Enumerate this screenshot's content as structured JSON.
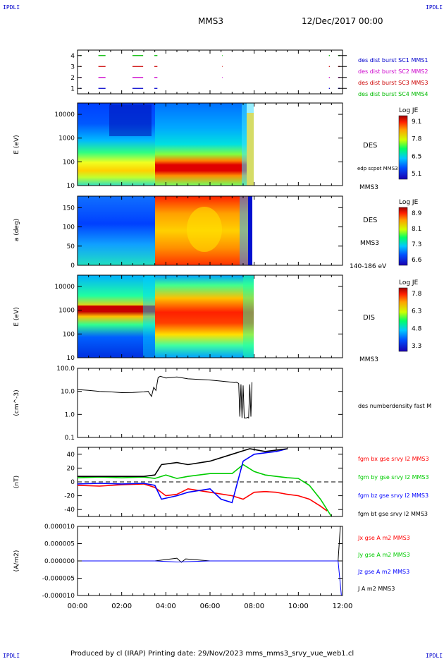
{
  "header": {
    "corner_tl": "IPDLI",
    "corner_tr": "IPDLI",
    "corner_bl": "IPDLI",
    "corner_br": "IPDLI",
    "mission": "MMS3",
    "date": "12/Dec/2017 00:00",
    "footer": "Produced by cl (IRAP)   Printing date: 29/Nov/2023   mms_mms3_srvy_vue_web1.cl"
  },
  "colors": {
    "mms1": "#0000cc",
    "mms2": "#cc00cc",
    "mms3": "#cc0000",
    "mms4": "#00bb00",
    "black": "#000000",
    "red": "#ff0000",
    "green": "#00cc00",
    "blue": "#0000ff"
  },
  "chart_data": [
    {
      "type": "scatter",
      "panel": "burst",
      "ylim": [
        0.5,
        4.5
      ],
      "y_ticks": [
        "1",
        "2",
        "3",
        "4"
      ],
      "x_ticks": [
        "00:00",
        "02:00",
        "04:00",
        "06:00",
        "08:00",
        "10:00",
        "12:00"
      ],
      "legend": [
        {
          "label": "des dist burst SC1 MMS1",
          "color_key": "mms1",
          "y": 4
        },
        {
          "label": "des dist burst SC2 MMS2",
          "color_key": "mms2",
          "y": 3
        },
        {
          "label": "des dist burst SC3 MMS3",
          "color_key": "mms3",
          "y": 2
        },
        {
          "label": "des dist burst SC4 MMS4",
          "color_key": "mms4",
          "y": 1
        }
      ],
      "series": [
        {
          "name": "des dist burst SC4 MMS4",
          "y": 4,
          "color_key": "mms4",
          "segments": [
            [
              0.25,
              0.35
            ],
            [
              2.05,
              2.75
            ],
            [
              5.4,
              6.45
            ],
            [
              7.55,
              7.85
            ],
            [
              14.2,
              14.25
            ],
            [
              24.7,
              24.8
            ],
            [
              25.6,
              25.8
            ]
          ]
        },
        {
          "name": "des dist burst SC3 MMS3",
          "y": 3,
          "color_key": "mms3",
          "segments": [
            [
              0.25,
              0.35
            ],
            [
              2.05,
              2.75
            ],
            [
              5.4,
              6.45
            ],
            [
              7.55,
              7.85
            ],
            [
              14.2,
              14.25
            ],
            [
              24.7,
              24.8
            ],
            [
              25.6,
              25.8
            ]
          ]
        },
        {
          "name": "des dist burst SC2 MMS2",
          "y": 2,
          "color_key": "mms2",
          "segments": [
            [
              0.25,
              0.35
            ],
            [
              2.05,
              2.75
            ],
            [
              5.4,
              6.45
            ],
            [
              7.55,
              7.85
            ],
            [
              14.2,
              14.25
            ],
            [
              24.7,
              24.8
            ],
            [
              25.6,
              25.8
            ]
          ]
        },
        {
          "name": "des dist burst SC1 MMS1",
          "y": 1,
          "color_key": "mms1",
          "segments": [
            [
              0.25,
              0.35
            ],
            [
              2.05,
              2.75
            ],
            [
              5.4,
              6.45
            ],
            [
              7.55,
              7.85
            ],
            [
              24.7,
              24.8
            ],
            [
              25.6,
              25.8
            ]
          ]
        }
      ]
    },
    {
      "type": "heatmap",
      "panel": "des_energy",
      "ylabel": "E (eV)",
      "scale": "log",
      "ylim": [
        10,
        30000
      ],
      "y_ticks": [
        "10",
        "100",
        "1000",
        "10000"
      ],
      "x_ticks": [
        "00:00",
        "02:00",
        "04:00",
        "06:00",
        "08:00",
        "10:00",
        "12:00"
      ],
      "label": "DES",
      "sublabel": "edp scpot MMS3",
      "bottom_label": "MMS3",
      "colorbar": {
        "title": "Log JE",
        "ticks": [
          "9.1",
          "7.8",
          "6.5",
          "5.1"
        ]
      },
      "data_end_hours": 8.0
    },
    {
      "type": "heatmap",
      "panel": "des_pitch",
      "ylabel": "a (deg)",
      "ylim": [
        0,
        180
      ],
      "y_ticks": [
        "0",
        "50",
        "100",
        "150"
      ],
      "x_ticks": [
        "00:00",
        "02:00",
        "04:00",
        "06:00",
        "08:00",
        "10:00",
        "12:00"
      ],
      "label": "DES",
      "sublabel": "MMS3",
      "bottom_label": "140-186 eV",
      "colorbar": {
        "title": "Log JE",
        "ticks": [
          "8.9",
          "8.1",
          "7.3",
          "6.6"
        ]
      },
      "data_end_hours": 8.0
    },
    {
      "type": "heatmap",
      "panel": "dis_energy",
      "ylabel": "E (eV)",
      "scale": "log",
      "ylim": [
        10,
        30000
      ],
      "y_ticks": [
        "10",
        "100",
        "1000",
        "10000"
      ],
      "x_ticks": [
        "00:00",
        "02:00",
        "04:00",
        "06:00",
        "08:00",
        "10:00",
        "12:00"
      ],
      "label": "DIS",
      "bottom_label": "MMS3",
      "colorbar": {
        "title": "Log JE",
        "ticks": [
          "7.8",
          "6.3",
          "4.8",
          "3.3"
        ]
      },
      "data_end_hours": 8.0
    },
    {
      "type": "line",
      "panel": "density",
      "ylabel": "(cm^-3)",
      "scale": "log",
      "ylim": [
        0.1,
        100
      ],
      "y_ticks": [
        "0.1",
        "1.0",
        "10.0",
        "100.0"
      ],
      "x_ticks": [
        "00:00",
        "02:00",
        "04:00",
        "06:00",
        "08:00",
        "10:00",
        "12:00"
      ],
      "legend": [
        {
          "label": "des numberdensity fast M",
          "color_key": "black"
        }
      ],
      "series": [
        {
          "name": "des numberdensity fast M",
          "color_key": "black",
          "x": [
            0.0,
            0.5,
            1.0,
            1.5,
            2.0,
            2.5,
            3.0,
            3.2,
            3.35,
            3.45,
            3.55,
            3.65,
            3.75,
            4.0,
            4.5,
            5.0,
            5.5,
            6.0,
            6.5,
            7.0,
            7.1,
            7.2,
            7.3,
            7.35,
            7.4,
            7.45,
            7.5,
            7.55,
            7.6,
            7.65,
            7.7,
            7.75,
            7.8,
            7.85,
            7.9
          ],
          "y": [
            12.0,
            11.0,
            10.0,
            9.5,
            8.8,
            9.0,
            9.5,
            10.0,
            6.0,
            15.0,
            11.0,
            40.0,
            45.0,
            38.0,
            42.0,
            35.0,
            33.0,
            31.0,
            28.0,
            25.0,
            24.0,
            25.0,
            22.0,
            0.8,
            20.0,
            0.7,
            18.0,
            0.7,
            0.7,
            0.7,
            0.75,
            0.7,
            20.0,
            0.8,
            25.0
          ]
        }
      ]
    },
    {
      "type": "line",
      "panel": "fgm",
      "ylabel": "(nT)",
      "ylim": [
        -50,
        50
      ],
      "y_ticks": [
        "-40",
        "-20",
        "0",
        "20",
        "40"
      ],
      "x_ticks": [
        "00:00",
        "02:00",
        "04:00",
        "06:00",
        "08:00",
        "10:00",
        "12:00"
      ],
      "legend": [
        {
          "label": "fgm bx gse srvy l2 MMS3",
          "color_key": "red"
        },
        {
          "label": "fgm by gse srvy l2 MMS3",
          "color_key": "green"
        },
        {
          "label": "fgm bz gse srvy l2 MMS3",
          "color_key": "blue"
        },
        {
          "label": "fgm bt gse srvy l2 MMS3",
          "color_key": "black"
        }
      ],
      "series": [
        {
          "name": "fgm bx gse srvy l2 MMS3",
          "color_key": "red",
          "x": [
            0.0,
            1.0,
            2.0,
            3.0,
            3.5,
            4.0,
            4.5,
            5.0,
            6.0,
            7.0,
            7.5,
            8.0,
            8.5,
            9.0,
            9.5,
            10.0,
            10.5,
            11.0,
            11.3
          ],
          "y": [
            -5,
            -6,
            -4,
            -3,
            -8,
            -20,
            -18,
            -10,
            -15,
            -20,
            -25,
            -15,
            -14,
            -15,
            -18,
            -20,
            -25,
            -35,
            -42
          ]
        },
        {
          "name": "fgm by gse srvy l2 MMS3",
          "color_key": "green",
          "x": [
            0.0,
            1.0,
            2.0,
            3.0,
            3.5,
            4.0,
            4.5,
            5.0,
            6.0,
            7.0,
            7.5,
            8.0,
            8.5,
            9.0,
            9.5,
            10.0,
            10.5,
            11.0,
            11.5
          ],
          "y": [
            6,
            7,
            6,
            7,
            5,
            10,
            5,
            8,
            12,
            12,
            25,
            15,
            10,
            8,
            6,
            5,
            -5,
            -25,
            -50
          ]
        },
        {
          "name": "fgm bz gse srvy l2 MMS3",
          "color_key": "blue",
          "x": [
            0.0,
            1.0,
            2.0,
            3.0,
            3.5,
            3.8,
            4.5,
            5.0,
            6.0,
            6.5,
            7.0,
            7.5,
            8.0,
            8.5,
            9.0,
            9.5
          ],
          "y": [
            -3,
            -2,
            -3,
            -2,
            -5,
            -25,
            -20,
            -15,
            -10,
            -25,
            -30,
            30,
            40,
            42,
            44,
            48
          ]
        },
        {
          "name": "fgm bt gse srvy l2 MMS3",
          "color_key": "black",
          "x": [
            0.0,
            1.0,
            2.0,
            3.0,
            3.5,
            3.8,
            4.5,
            5.0,
            6.0,
            7.0,
            7.5,
            7.8,
            8.5,
            9.0,
            9.5
          ],
          "y": [
            8,
            8,
            8,
            8,
            10,
            25,
            28,
            25,
            30,
            40,
            45,
            48,
            44,
            46,
            48
          ]
        }
      ]
    },
    {
      "type": "line",
      "panel": "current",
      "ylabel": "(A/m2)",
      "ylim": [
        -1e-05,
        1e-05
      ],
      "y_ticks": [
        "-0.000010",
        "-0.000005",
        "0.000000",
        "0.000005",
        "0.000010"
      ],
      "x_ticks": [
        "00:00",
        "02:00",
        "04:00",
        "06:00",
        "08:00",
        "10:00",
        "12:00"
      ],
      "legend": [
        {
          "label": "Jx gse A m2 MMS3",
          "color_key": "red"
        },
        {
          "label": "Jy gse A m2 MMS3",
          "color_key": "green"
        },
        {
          "label": "Jz gse A m2 MMS3",
          "color_key": "blue"
        },
        {
          "label": "J A m2 MMS3",
          "color_key": "black"
        }
      ],
      "series": [
        {
          "name": "J A m2 MMS3",
          "color_key": "black",
          "x": [
            0.0,
            3.5,
            4.5,
            4.7,
            4.9,
            6.0,
            8.0,
            10.0,
            11.8,
            11.9
          ],
          "y": [
            0.0,
            0.0,
            8e-07,
            -4e-07,
            6e-07,
            0.0,
            0.0,
            0.0,
            0.0,
            1e-05
          ]
        },
        {
          "name": "Jz gse A m2 MMS3",
          "color_key": "blue",
          "x": [
            0.0,
            3.5,
            4.5,
            6.0,
            8.0,
            10.0,
            11.8,
            11.95
          ],
          "y": [
            0.0,
            0.0,
            -3e-07,
            0.0,
            0.0,
            0.0,
            0.0,
            -1e-05
          ]
        }
      ]
    }
  ]
}
